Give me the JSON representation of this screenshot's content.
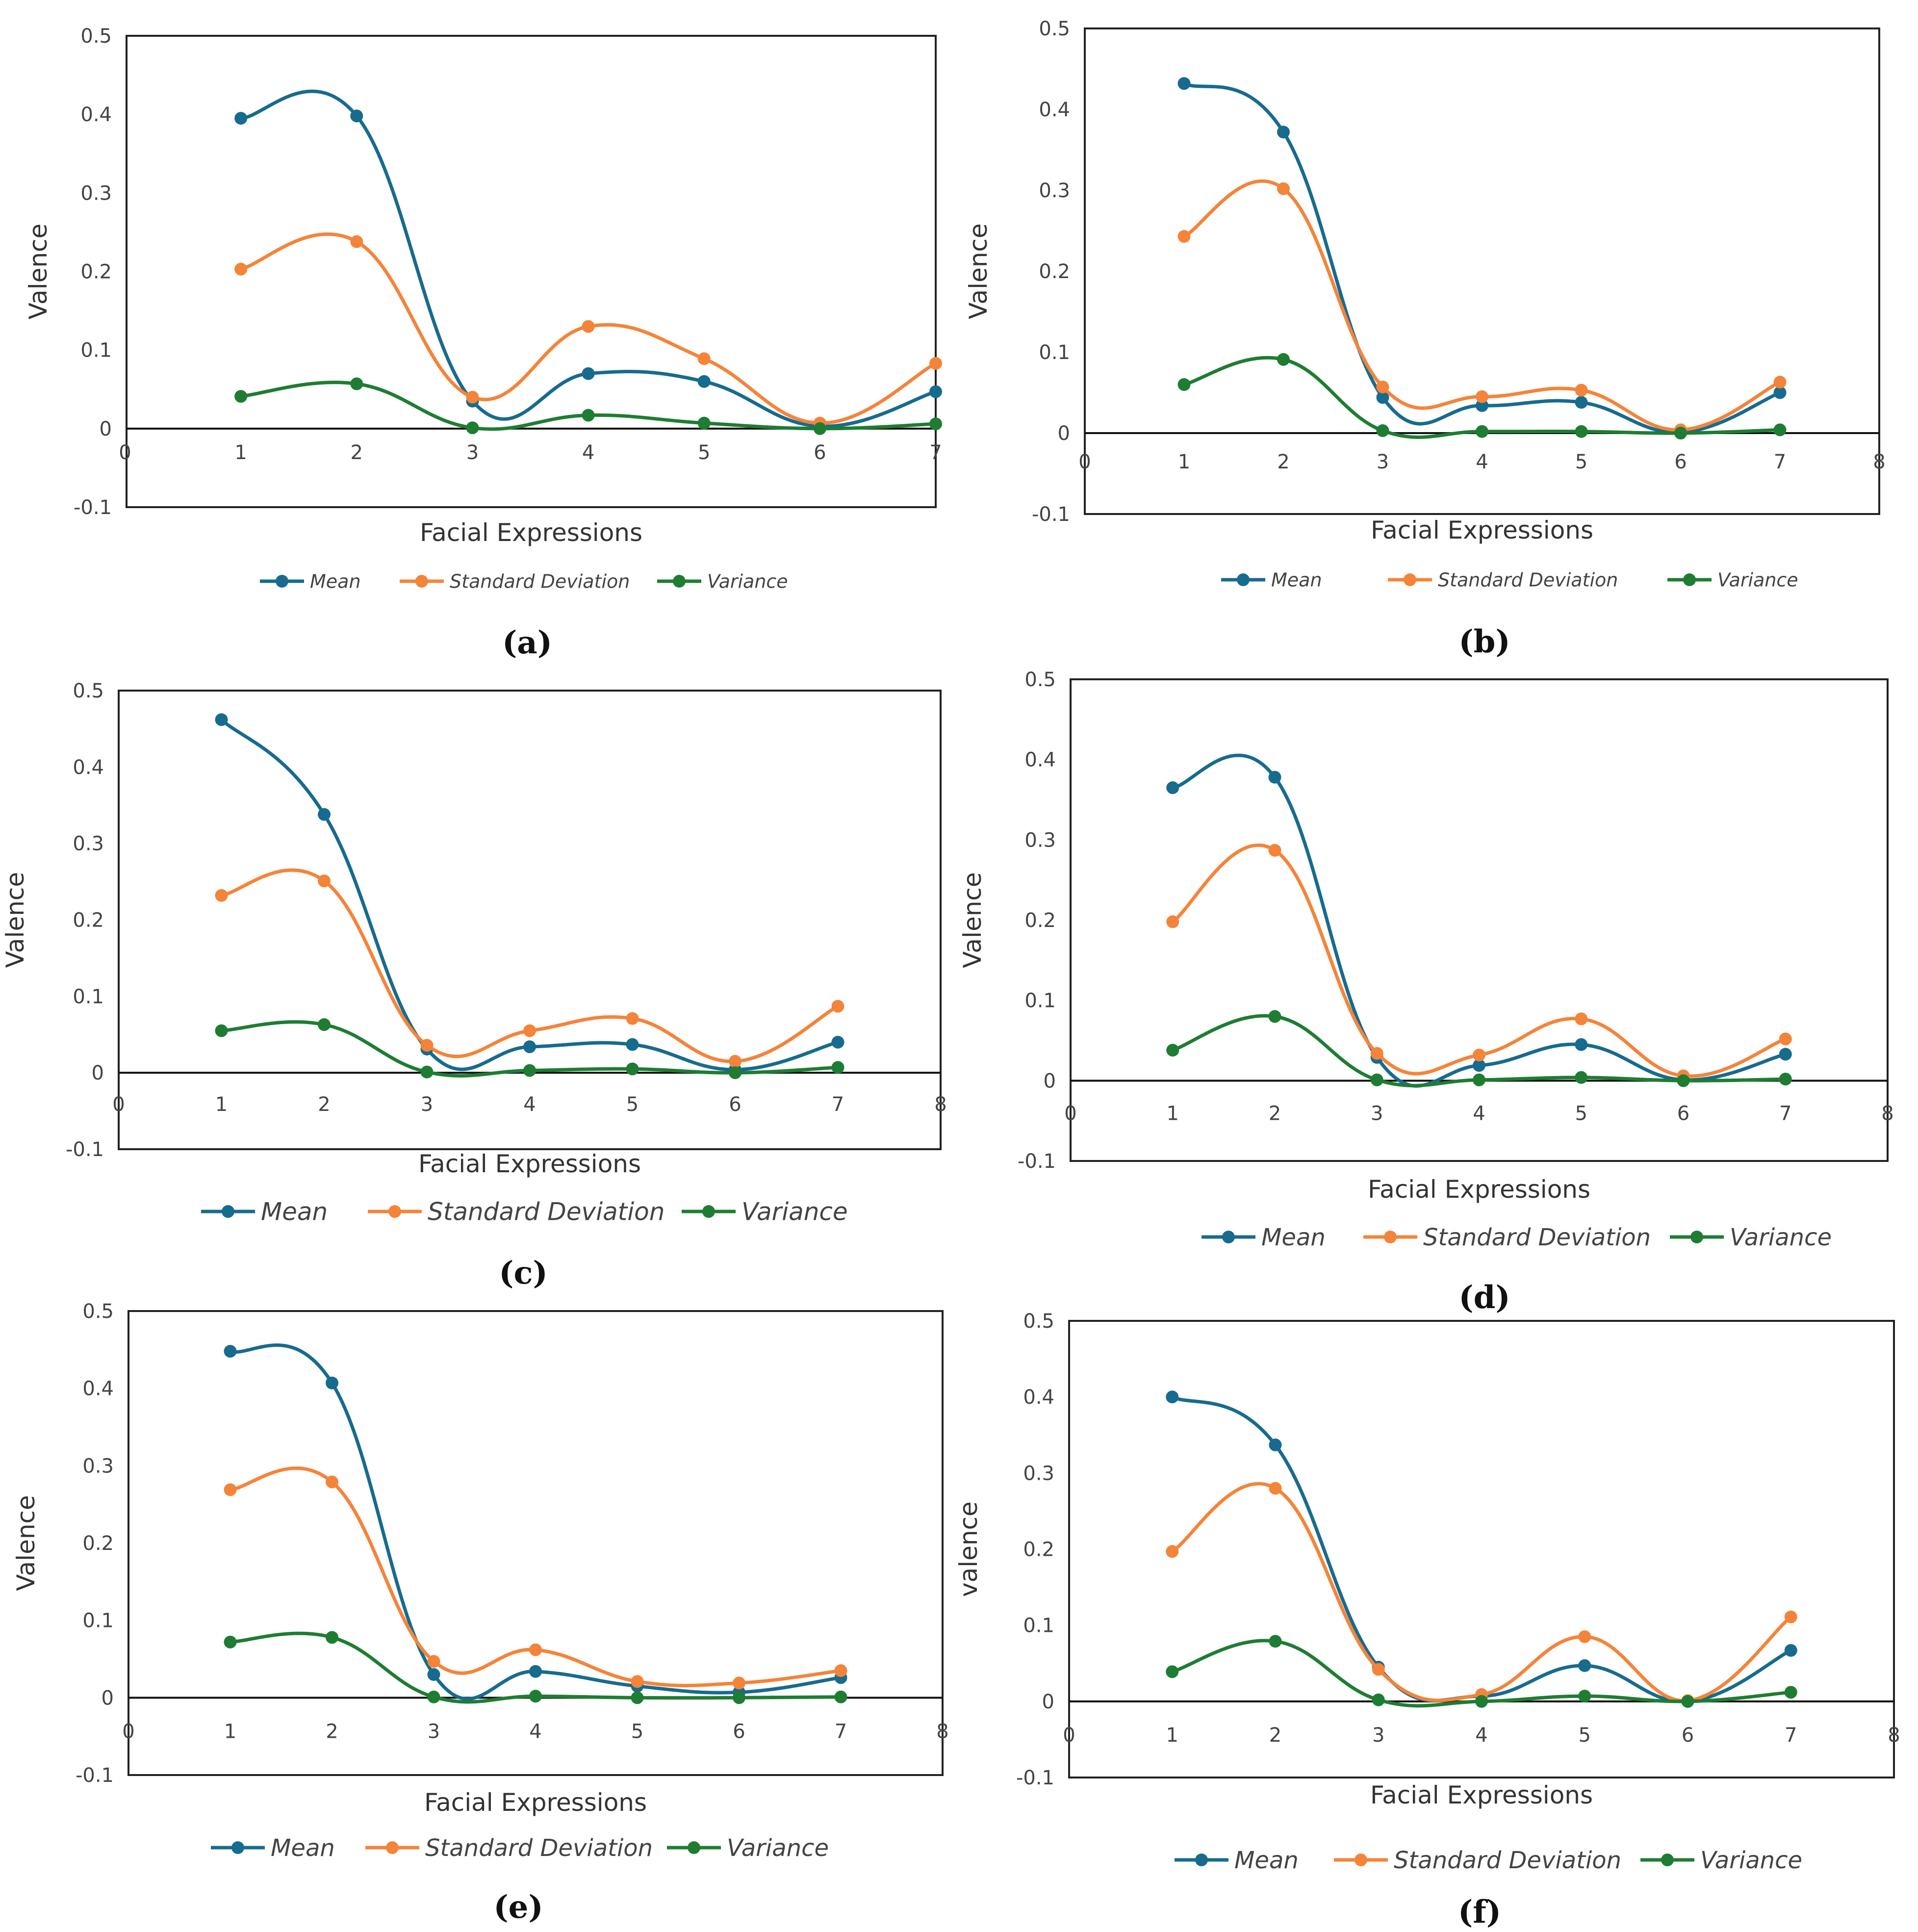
{
  "chart_data": [
    {
      "type": "line",
      "caption": "(a)",
      "xlabel": "Facial Expressions",
      "ylabel": "Valence",
      "xlim": [
        0,
        7
      ],
      "ylim": [
        -0.1,
        0.5
      ],
      "x_ticks": [
        0,
        1,
        2,
        3,
        4,
        5,
        6,
        7
      ],
      "y_ticks": [
        -0.1,
        0,
        0.1,
        0.2,
        0.3,
        0.4,
        0.5
      ],
      "x": [
        1,
        2,
        3,
        4,
        5,
        6,
        7
      ],
      "series": [
        {
          "name": "Mean",
          "color": "#176b8e",
          "values": [
            0.395,
            0.398,
            0.035,
            0.07,
            0.06,
            0.003,
            0.047
          ]
        },
        {
          "name": "Standard Deviation",
          "color": "#f4843a",
          "values": [
            0.203,
            0.238,
            0.04,
            0.13,
            0.089,
            0.007,
            0.083
          ]
        },
        {
          "name": "Variance",
          "color": "#1e7d32",
          "values": [
            0.041,
            0.057,
            0.001,
            0.017,
            0.007,
            0.0,
            0.006
          ]
        }
      ]
    },
    {
      "type": "line",
      "caption": "(b)",
      "xlabel": "Facial Expressions",
      "ylabel": "Valence",
      "xlim": [
        0,
        8
      ],
      "ylim": [
        -0.1,
        0.5
      ],
      "x_ticks": [
        0,
        1,
        2,
        3,
        4,
        5,
        6,
        7,
        8
      ],
      "y_ticks": [
        -0.1,
        0,
        0.1,
        0.2,
        0.3,
        0.4,
        0.5
      ],
      "x": [
        1,
        2,
        3,
        4,
        5,
        6,
        7
      ],
      "series": [
        {
          "name": "Mean",
          "color": "#176b8e",
          "values": [
            0.432,
            0.372,
            0.044,
            0.034,
            0.038,
            0.001,
            0.05
          ]
        },
        {
          "name": "Standard Deviation",
          "color": "#f4843a",
          "values": [
            0.243,
            0.302,
            0.057,
            0.045,
            0.053,
            0.004,
            0.063
          ]
        },
        {
          "name": "Variance",
          "color": "#1e7d32",
          "values": [
            0.06,
            0.091,
            0.003,
            0.002,
            0.002,
            0.0,
            0.004
          ]
        }
      ]
    },
    {
      "type": "line",
      "caption": "(c)",
      "xlabel": "Facial Expressions",
      "ylabel": "Valence",
      "xlim": [
        0,
        8
      ],
      "ylim": [
        -0.1,
        0.5
      ],
      "x_ticks": [
        0,
        1,
        2,
        3,
        4,
        5,
        6,
        7,
        8
      ],
      "y_ticks": [
        -0.1,
        0,
        0.1,
        0.2,
        0.3,
        0.4,
        0.5
      ],
      "x": [
        1,
        2,
        3,
        4,
        5,
        6,
        7
      ],
      "series": [
        {
          "name": "Mean",
          "color": "#176b8e",
          "values": [
            0.462,
            0.338,
            0.031,
            0.034,
            0.037,
            0.004,
            0.04
          ]
        },
        {
          "name": "Standard Deviation",
          "color": "#f4843a",
          "values": [
            0.232,
            0.251,
            0.036,
            0.055,
            0.071,
            0.015,
            0.087
          ]
        },
        {
          "name": "Variance",
          "color": "#1e7d32",
          "values": [
            0.055,
            0.063,
            0.001,
            0.003,
            0.005,
            0.0,
            0.007
          ]
        }
      ]
    },
    {
      "type": "line",
      "caption": "(d)",
      "xlabel": "Facial Expressions",
      "ylabel": "Valence",
      "xlim": [
        0,
        8
      ],
      "ylim": [
        -0.1,
        0.5
      ],
      "x_ticks": [
        0,
        1,
        2,
        3,
        4,
        5,
        6,
        7,
        8
      ],
      "y_ticks": [
        -0.1,
        0,
        0.1,
        0.2,
        0.3,
        0.4,
        0.5
      ],
      "x": [
        1,
        2,
        3,
        4,
        5,
        6,
        7
      ],
      "series": [
        {
          "name": "Mean",
          "color": "#176b8e",
          "values": [
            0.365,
            0.378,
            0.029,
            0.019,
            0.045,
            0.001,
            0.033
          ]
        },
        {
          "name": "Standard Deviation",
          "color": "#f4843a",
          "values": [
            0.198,
            0.287,
            0.034,
            0.032,
            0.077,
            0.006,
            0.052
          ]
        },
        {
          "name": "Variance",
          "color": "#1e7d32",
          "values": [
            0.038,
            0.08,
            0.001,
            0.001,
            0.004,
            0.0,
            0.002
          ]
        }
      ]
    },
    {
      "type": "line",
      "caption": "(e)",
      "xlabel": "Facial Expressions",
      "ylabel": "Valence",
      "xlim": [
        0,
        8
      ],
      "ylim": [
        -0.1,
        0.5
      ],
      "x_ticks": [
        0,
        1,
        2,
        3,
        4,
        5,
        6,
        7,
        8
      ],
      "y_ticks": [
        -0.1,
        0,
        0.1,
        0.2,
        0.3,
        0.4,
        0.5
      ],
      "x": [
        1,
        2,
        3,
        4,
        5,
        6,
        7
      ],
      "series": [
        {
          "name": "Mean",
          "color": "#176b8e",
          "values": [
            0.448,
            0.407,
            0.03,
            0.034,
            0.015,
            0.007,
            0.026
          ]
        },
        {
          "name": "Standard Deviation",
          "color": "#f4843a",
          "values": [
            0.269,
            0.279,
            0.047,
            0.062,
            0.021,
            0.019,
            0.035
          ]
        },
        {
          "name": "Variance",
          "color": "#1e7d32",
          "values": [
            0.072,
            0.078,
            0.001,
            0.002,
            0.0,
            0.0,
            0.001
          ]
        }
      ]
    },
    {
      "type": "line",
      "caption": "(f)",
      "xlabel": "Facial Expressions",
      "ylabel": "valence",
      "xlim": [
        0,
        8
      ],
      "ylim": [
        -0.1,
        0.5
      ],
      "x_ticks": [
        0,
        1,
        2,
        3,
        4,
        5,
        6,
        7,
        8
      ],
      "y_ticks": [
        -0.1,
        0,
        0.1,
        0.2,
        0.3,
        0.4,
        0.5
      ],
      "x": [
        1,
        2,
        3,
        4,
        5,
        6,
        7
      ],
      "series": [
        {
          "name": "Mean",
          "color": "#176b8e",
          "values": [
            0.4,
            0.337,
            0.045,
            0.007,
            0.047,
            0.0,
            0.067
          ]
        },
        {
          "name": "Standard Deviation",
          "color": "#f4843a",
          "values": [
            0.197,
            0.28,
            0.042,
            0.009,
            0.085,
            0.001,
            0.111
          ]
        },
        {
          "name": "Variance",
          "color": "#1e7d32",
          "values": [
            0.039,
            0.079,
            0.002,
            0.0,
            0.007,
            0.0,
            0.012
          ]
        }
      ]
    }
  ]
}
